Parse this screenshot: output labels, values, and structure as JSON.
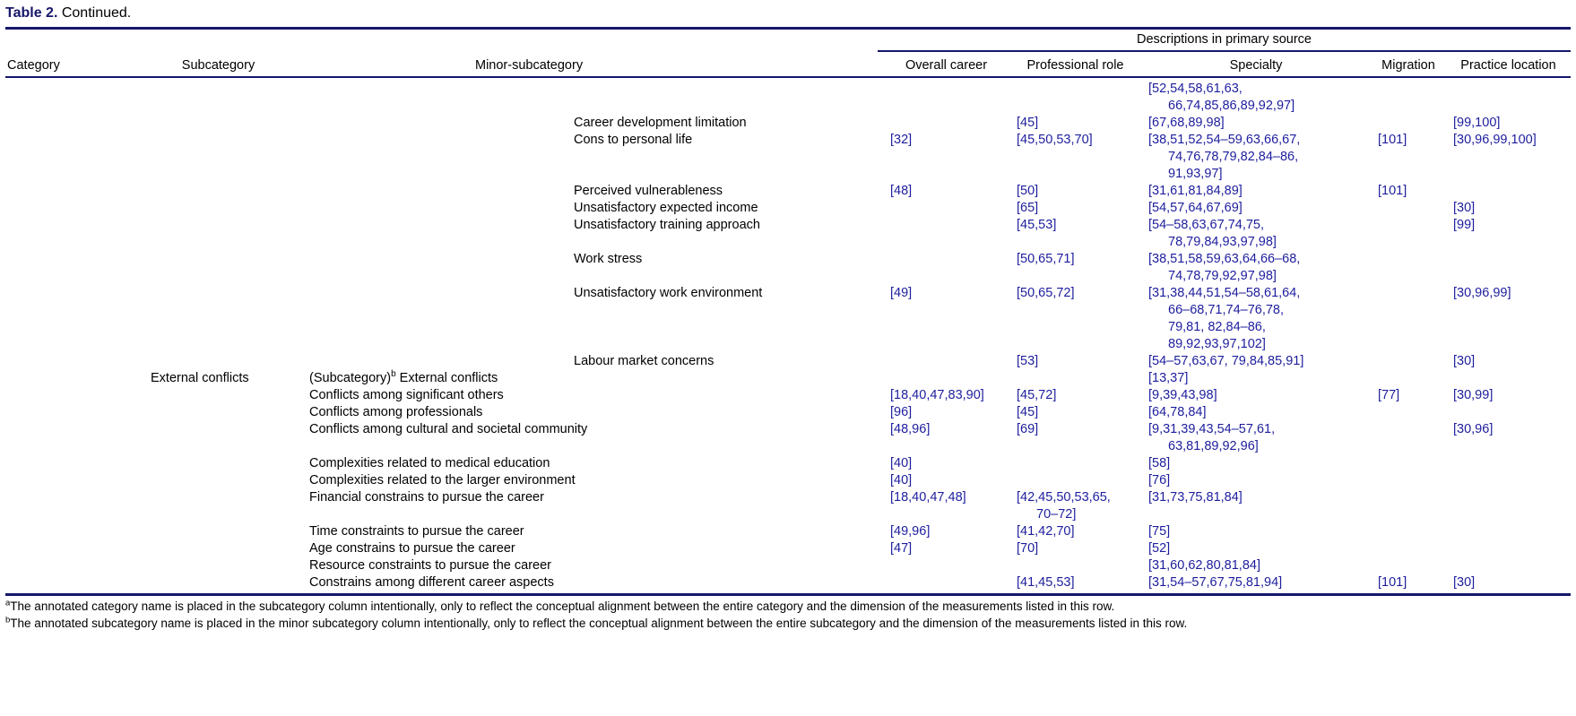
{
  "title": {
    "label": "Table 2.",
    "text": "Continued."
  },
  "colors": {
    "rule": "#16166b",
    "citation": "#1d1d9e",
    "title_label": "#16166b",
    "text": "#000000"
  },
  "header": {
    "spanner": "Descriptions in primary source",
    "columns": {
      "category": "Category",
      "subcategory": "Subcategory",
      "minor_subcategory": "Minor-subcategory",
      "overall_career": "Overall career",
      "professional_role": "Professional role",
      "specialty": "Specialty",
      "migration": "Migration",
      "practice_location": "Practice location"
    }
  },
  "table": {
    "rows": [
      {
        "indent": "deep",
        "minor": "",
        "specialty": "[52,54,58,61,63,\n66,74,85,86,89,92,97]"
      },
      {
        "indent": "deep",
        "minor": "Career development limitation",
        "professional_role": "[45]",
        "specialty": "[67,68,89,98]",
        "practice_location": "[99,100]"
      },
      {
        "indent": "deep",
        "minor": "Cons to personal life",
        "overall_career": "[32]",
        "professional_role": "[45,50,53,70]",
        "specialty": "[38,51,52,54–59,63,66,67,\n74,76,78,79,82,84–86,\n91,93,97]",
        "migration": "[101]",
        "practice_location": "[30,96,99,100]"
      },
      {
        "indent": "deep",
        "minor": "Perceived vulnerableness",
        "overall_career": "[48]",
        "professional_role": "[50]",
        "specialty": "[31,61,81,84,89]",
        "migration": "[101]"
      },
      {
        "indent": "deep",
        "minor": "Unsatisfactory expected income",
        "professional_role": "[65]",
        "specialty": "[54,57,64,67,69]",
        "practice_location": "[30]"
      },
      {
        "indent": "deep",
        "minor": "Unsatisfactory training approach",
        "professional_role": "[45,53]",
        "specialty": "[54–58,63,67,74,75,\n78,79,84,93,97,98]",
        "practice_location": "[99]"
      },
      {
        "indent": "deep",
        "minor": "Work stress",
        "professional_role": "[50,65,71]",
        "specialty": "[38,51,58,59,63,64,66–68,\n74,78,79,92,97,98]"
      },
      {
        "indent": "deep",
        "minor": "Unsatisfactory work environment",
        "overall_career": "[49]",
        "professional_role": "[50,65,72]",
        "specialty": "[31,38,44,51,54–58,61,64,\n66–68,71,74–76,78,\n79,81, 82,84–86,\n89,92,93,97,102]",
        "practice_location": "[30,96,99]"
      },
      {
        "indent": "deep",
        "minor": "Labour market concerns",
        "professional_role": "[53]",
        "specialty": "[54–57,63,67, 79,84,85,91]",
        "practice_location": "[30]"
      },
      {
        "indent": "shallow",
        "subcategory": "External conflicts",
        "minor_prefix": "(Subcategory)",
        "minor_sup": "b",
        "minor_suffix": " External conflicts",
        "specialty": "[13,37]"
      },
      {
        "indent": "shallow",
        "minor": "Conflicts among significant others",
        "overall_career": "[18,40,47,83,90]",
        "professional_role": "[45,72]",
        "specialty": "[9,39,43,98]",
        "migration": "[77]",
        "practice_location": "[30,99]"
      },
      {
        "indent": "shallow",
        "minor": "Conflicts among professionals",
        "overall_career": "[96]",
        "professional_role": "[45]",
        "specialty": "[64,78,84]"
      },
      {
        "indent": "shallow",
        "minor": "Conflicts among cultural and societal community",
        "overall_career": "[48,96]",
        "professional_role": "[69]",
        "specialty": "[9,31,39,43,54–57,61,\n63,81,89,92,96]",
        "practice_location": "[30,96]"
      },
      {
        "indent": "shallow",
        "minor": "Complexities related to medical education",
        "overall_career": "[40]",
        "specialty": "[58]"
      },
      {
        "indent": "shallow",
        "minor": "Complexities related to the larger environment",
        "overall_career": "[40]",
        "specialty": "[76]"
      },
      {
        "indent": "shallow",
        "minor": "Financial constrains to pursue the career",
        "overall_career": "[18,40,47,48]",
        "professional_role": "[42,45,50,53,65,\n70–72]",
        "specialty": "[31,73,75,81,84]"
      },
      {
        "indent": "shallow",
        "minor": "Time constraints to pursue the career",
        "overall_career": "[49,96]",
        "professional_role": "[41,42,70]",
        "specialty": "[75]"
      },
      {
        "indent": "shallow",
        "minor": "Age constrains to pursue the career",
        "overall_career": "[47]",
        "professional_role": "[70]",
        "specialty": "[52]"
      },
      {
        "indent": "shallow",
        "minor": "Resource constraints to pursue the career",
        "specialty": "[31,60,62,80,81,84]"
      },
      {
        "indent": "shallow",
        "minor": "Constrains among different career aspects",
        "professional_role": "[41,45,53]",
        "specialty": "[31,54–57,67,75,81,94]",
        "migration": "[101]",
        "practice_location": "[30]"
      }
    ]
  },
  "footnotes": {
    "a_marker": "a",
    "a": "The annotated category name is placed in the subcategory column intentionally, only to reflect the conceptual alignment between the entire category and the dimension of the measurements listed in this row.",
    "b_marker": "b",
    "b": "The annotated subcategory name is placed in the minor subcategory column intentionally, only to reflect the conceptual alignment between the entire subcategory and the dimension of the measurements listed in this row."
  }
}
